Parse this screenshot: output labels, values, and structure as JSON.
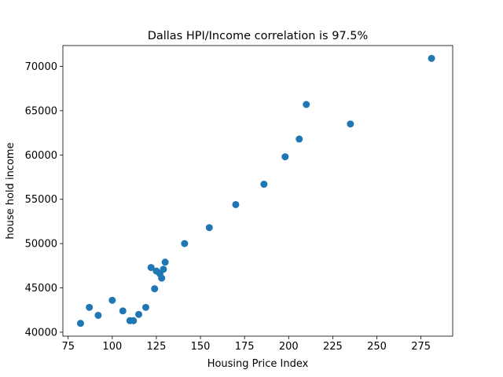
{
  "chart_data": {
    "type": "scatter",
    "title": "Dallas HPI/Income correlation  is 97.5%",
    "xlabel": "Housing Price Index",
    "ylabel": "house hold income",
    "xlim": [
      72,
      293
    ],
    "ylim": [
      39550,
      72350
    ],
    "xticks": [
      75,
      100,
      125,
      150,
      175,
      200,
      225,
      250,
      275
    ],
    "yticks": [
      40000,
      45000,
      50000,
      55000,
      60000,
      65000,
      70000
    ],
    "grid": false,
    "marker_color": "#1f77b4",
    "points": [
      {
        "x": 82,
        "y": 41000
      },
      {
        "x": 87,
        "y": 42800
      },
      {
        "x": 92,
        "y": 41900
      },
      {
        "x": 100,
        "y": 43600
      },
      {
        "x": 106,
        "y": 42400
      },
      {
        "x": 110,
        "y": 41300
      },
      {
        "x": 112,
        "y": 41300
      },
      {
        "x": 115,
        "y": 42000
      },
      {
        "x": 119,
        "y": 42800
      },
      {
        "x": 122,
        "y": 47300
      },
      {
        "x": 124,
        "y": 44900
      },
      {
        "x": 125,
        "y": 46900
      },
      {
        "x": 127,
        "y": 46600
      },
      {
        "x": 128,
        "y": 46100
      },
      {
        "x": 129,
        "y": 47100
      },
      {
        "x": 130,
        "y": 47900
      },
      {
        "x": 141,
        "y": 50000
      },
      {
        "x": 155,
        "y": 51800
      },
      {
        "x": 170,
        "y": 54400
      },
      {
        "x": 186,
        "y": 56700
      },
      {
        "x": 198,
        "y": 59800
      },
      {
        "x": 206,
        "y": 61800
      },
      {
        "x": 210,
        "y": 65700
      },
      {
        "x": 235,
        "y": 63500
      },
      {
        "x": 281,
        "y": 70900
      }
    ]
  }
}
